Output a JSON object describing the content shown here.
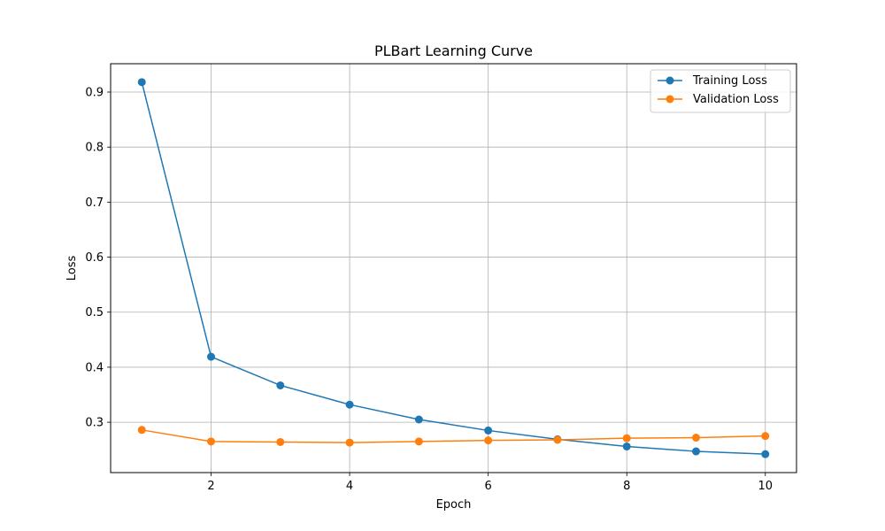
{
  "chart_data": {
    "type": "line",
    "title": "PLBart Learning Curve",
    "xlabel": "Epoch",
    "ylabel": "Loss",
    "x": [
      1,
      2,
      3,
      4,
      5,
      6,
      7,
      8,
      9,
      10
    ],
    "series": [
      {
        "name": "Training Loss",
        "color": "#1f77b4",
        "marker": "circle",
        "values": [
          0.918,
          0.419,
          0.367,
          0.332,
          0.305,
          0.285,
          0.269,
          0.256,
          0.247,
          0.242
        ]
      },
      {
        "name": "Validation Loss",
        "color": "#ff7f0e",
        "marker": "circle",
        "values": [
          0.286,
          0.265,
          0.264,
          0.263,
          0.265,
          0.267,
          0.268,
          0.271,
          0.272,
          0.275
        ]
      }
    ],
    "xlim": [
      0.55,
      10.45
    ],
    "ylim": [
      0.2085,
      0.9515
    ],
    "xticks": [
      2,
      4,
      6,
      8,
      10
    ],
    "xtick_labels": [
      "2",
      "4",
      "6",
      "8",
      "10"
    ],
    "yticks": [
      0.3,
      0.4,
      0.5,
      0.6,
      0.7,
      0.8,
      0.9
    ],
    "ytick_labels": [
      "0.3",
      "0.4",
      "0.5",
      "0.6",
      "0.7",
      "0.8",
      "0.9"
    ],
    "grid": true,
    "legend_position": "top-right"
  }
}
